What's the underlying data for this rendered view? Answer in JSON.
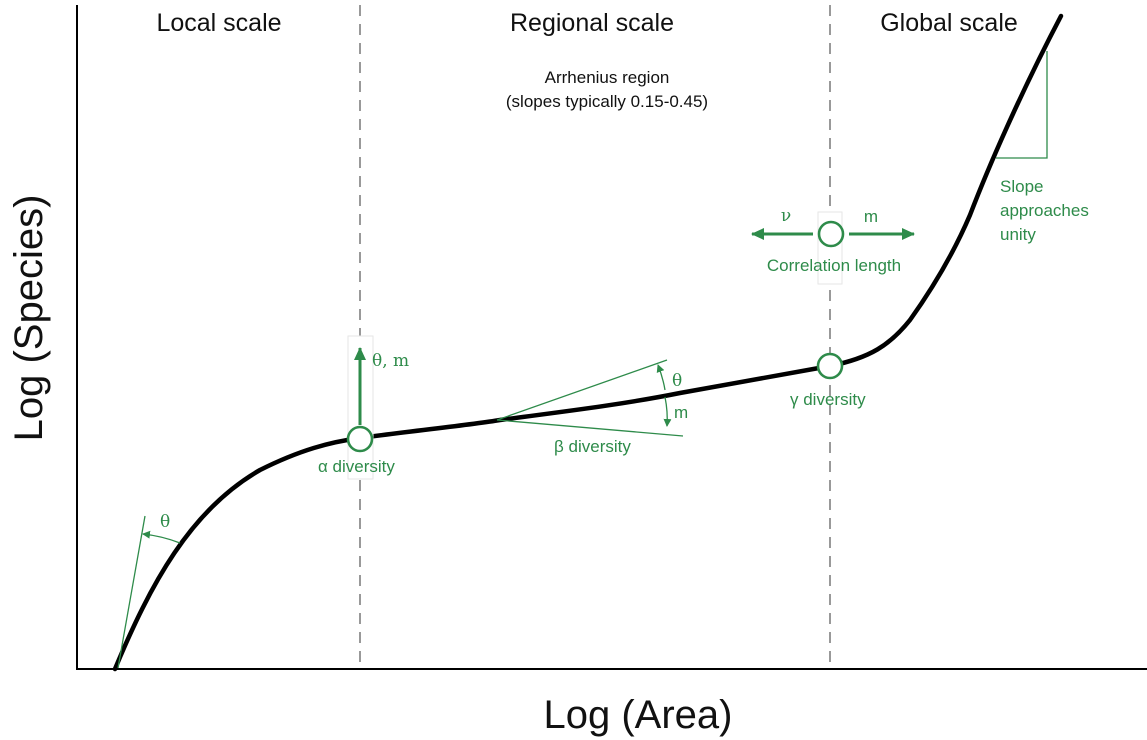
{
  "colors": {
    "curve": "#000000",
    "annotation": "#2e8b4a",
    "divider": "#999999",
    "axis": "#000000"
  },
  "scales": {
    "local": "Local scale",
    "regional": "Regional scale",
    "global": "Global scale"
  },
  "axes": {
    "x_label": "Log (Area)",
    "y_label": "Log (Species)"
  },
  "arrhenius": {
    "line1": "Arrhenius region",
    "line2": "(slopes typically 0.15-0.45)"
  },
  "annotations": {
    "theta": "θ",
    "theta_m": "θ, m",
    "m": "m",
    "nu": "ν",
    "alpha": "α diversity",
    "beta": "β diversity",
    "gamma": "γ diversity",
    "correlation": "Correlation length",
    "slope_line1": "Slope",
    "slope_line2": "approaches",
    "slope_line3": "unity"
  }
}
